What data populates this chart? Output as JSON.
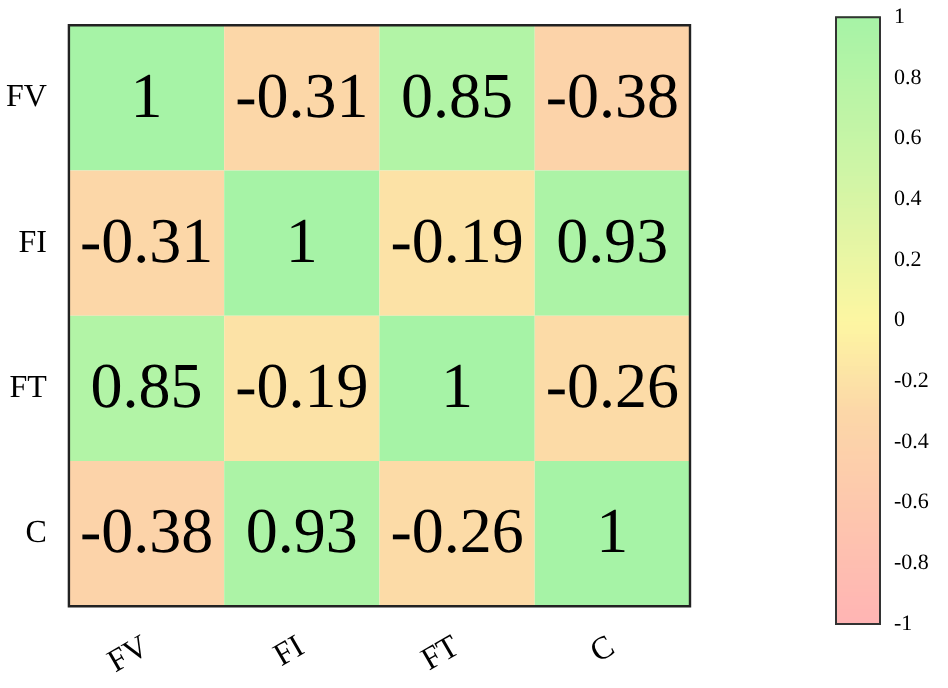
{
  "chart_data": {
    "type": "heatmap",
    "categories": [
      "FV",
      "FI",
      "FT",
      "C"
    ],
    "y_categories": [
      "FV",
      "FI",
      "FT",
      "C"
    ],
    "cells": [
      [
        1,
        -0.31,
        0.85,
        -0.38
      ],
      [
        -0.31,
        1,
        -0.19,
        0.93
      ],
      [
        0.85,
        -0.19,
        1,
        -0.26
      ],
      [
        -0.38,
        0.93,
        -0.26,
        1
      ]
    ],
    "data_labels": true,
    "clim": [
      -1,
      1
    ],
    "cticks": [
      -1,
      -0.8,
      -0.6,
      -0.4,
      -0.2,
      0,
      0.2,
      0.4,
      0.6,
      0.8,
      1
    ]
  }
}
